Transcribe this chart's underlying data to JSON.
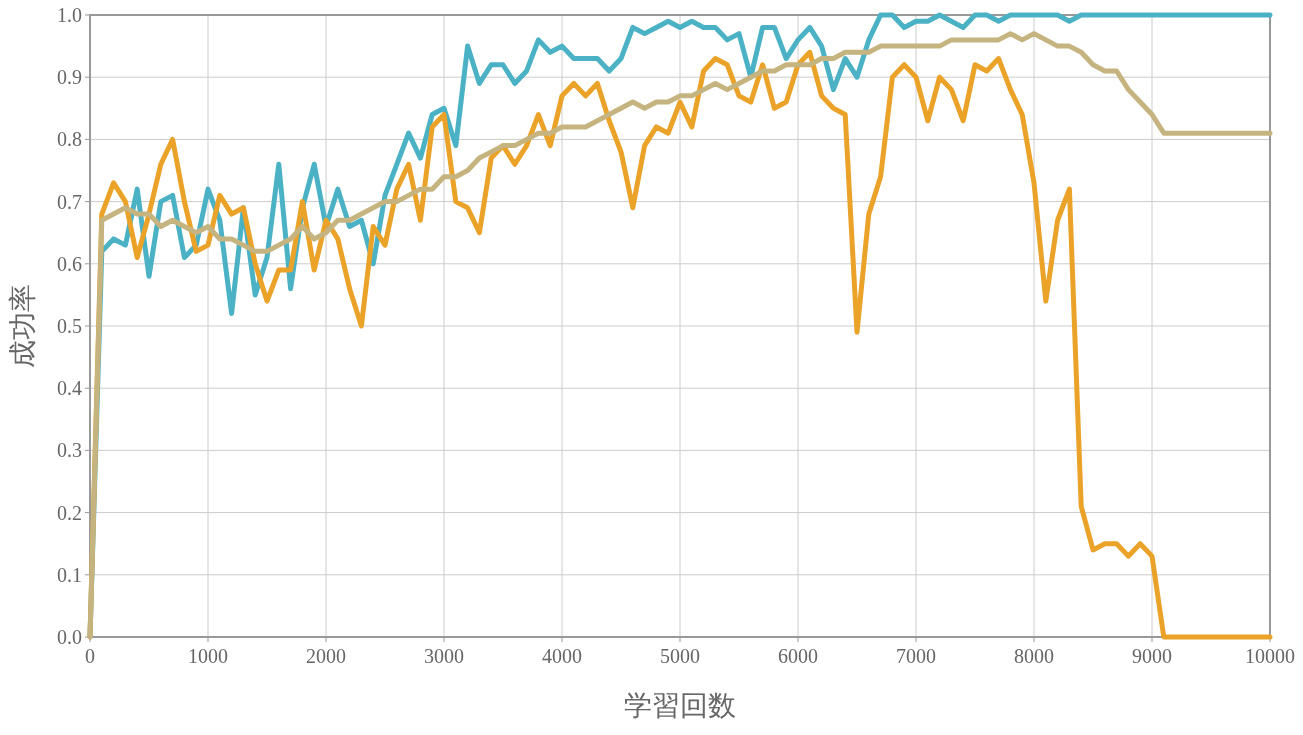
{
  "chart_data": {
    "type": "line",
    "xlabel": "学習回数",
    "ylabel": "成功率",
    "x": [
      0,
      100,
      200,
      300,
      400,
      500,
      600,
      700,
      800,
      900,
      1000,
      1100,
      1200,
      1300,
      1400,
      1500,
      1600,
      1700,
      1800,
      1900,
      2000,
      2100,
      2200,
      2300,
      2400,
      2500,
      2600,
      2700,
      2800,
      2900,
      3000,
      3100,
      3200,
      3300,
      3400,
      3500,
      3600,
      3700,
      3800,
      3900,
      4000,
      4100,
      4200,
      4300,
      4400,
      4500,
      4600,
      4700,
      4800,
      4900,
      5000,
      5100,
      5200,
      5300,
      5400,
      5500,
      5600,
      5700,
      5800,
      5900,
      6000,
      6100,
      6200,
      6300,
      6400,
      6500,
      6600,
      6700,
      6800,
      6900,
      7000,
      7100,
      7200,
      7300,
      7400,
      7500,
      7600,
      7700,
      7800,
      7900,
      8000,
      8100,
      8200,
      8300,
      8400,
      8500,
      8600,
      8700,
      8800,
      8900,
      9000,
      9100,
      9200,
      9300,
      9400,
      9500,
      9600,
      9700,
      9800,
      9900,
      10000
    ],
    "series": [
      {
        "color": "#4bb2c5",
        "values": [
          0,
          0.62,
          0.64,
          0.63,
          0.72,
          0.58,
          0.7,
          0.71,
          0.61,
          0.63,
          0.72,
          0.67,
          0.52,
          0.69,
          0.55,
          0.61,
          0.76,
          0.56,
          0.69,
          0.76,
          0.66,
          0.72,
          0.66,
          0.67,
          0.6,
          0.71,
          0.76,
          0.81,
          0.77,
          0.84,
          0.85,
          0.79,
          0.95,
          0.89,
          0.92,
          0.92,
          0.89,
          0.91,
          0.96,
          0.94,
          0.95,
          0.93,
          0.93,
          0.93,
          0.91,
          0.93,
          0.98,
          0.97,
          0.98,
          0.99,
          0.98,
          0.99,
          0.98,
          0.98,
          0.96,
          0.97,
          0.9,
          0.98,
          0.98,
          0.93,
          0.96,
          0.98,
          0.95,
          0.88,
          0.93,
          0.9,
          0.96,
          1.0,
          1.0,
          0.98,
          0.99,
          0.99,
          1.0,
          0.99,
          0.98,
          1.0,
          1.0,
          0.99,
          1.0,
          1.0,
          1.0,
          1.0,
          1.0,
          0.99,
          1.0,
          1.0,
          1.0,
          1.0,
          1.0,
          1.0,
          1.0,
          1.0,
          1.0,
          1.0,
          1.0,
          1.0,
          1.0,
          1.0,
          1.0,
          1.0,
          1.0
        ]
      },
      {
        "color": "#eaa228",
        "values": [
          0,
          0.68,
          0.73,
          0.7,
          0.61,
          0.68,
          0.76,
          0.8,
          0.7,
          0.62,
          0.63,
          0.71,
          0.68,
          0.69,
          0.6,
          0.54,
          0.59,
          0.59,
          0.7,
          0.59,
          0.67,
          0.64,
          0.56,
          0.5,
          0.66,
          0.63,
          0.72,
          0.76,
          0.67,
          0.82,
          0.84,
          0.7,
          0.69,
          0.65,
          0.77,
          0.79,
          0.76,
          0.79,
          0.84,
          0.79,
          0.87,
          0.89,
          0.87,
          0.89,
          0.83,
          0.78,
          0.69,
          0.79,
          0.82,
          0.81,
          0.86,
          0.82,
          0.91,
          0.93,
          0.92,
          0.87,
          0.86,
          0.92,
          0.85,
          0.86,
          0.92,
          0.94,
          0.87,
          0.85,
          0.84,
          0.49,
          0.68,
          0.74,
          0.9,
          0.92,
          0.9,
          0.83,
          0.9,
          0.88,
          0.83,
          0.92,
          0.91,
          0.93,
          0.88,
          0.84,
          0.73,
          0.54,
          0.67,
          0.72,
          0.21,
          0.14,
          0.15,
          0.15,
          0.13,
          0.15,
          0.13,
          0,
          0,
          0,
          0,
          0,
          0,
          0,
          0,
          0,
          0
        ]
      },
      {
        "color": "#c5b47f",
        "values": [
          0,
          0.67,
          0.68,
          0.69,
          0.68,
          0.68,
          0.66,
          0.67,
          0.66,
          0.65,
          0.66,
          0.64,
          0.64,
          0.63,
          0.62,
          0.62,
          0.63,
          0.64,
          0.66,
          0.64,
          0.65,
          0.67,
          0.67,
          0.68,
          0.69,
          0.7,
          0.7,
          0.71,
          0.72,
          0.72,
          0.74,
          0.74,
          0.75,
          0.77,
          0.78,
          0.79,
          0.79,
          0.8,
          0.81,
          0.81,
          0.82,
          0.82,
          0.82,
          0.83,
          0.84,
          0.85,
          0.86,
          0.85,
          0.86,
          0.86,
          0.87,
          0.87,
          0.88,
          0.89,
          0.88,
          0.89,
          0.9,
          0.91,
          0.91,
          0.92,
          0.92,
          0.92,
          0.93,
          0.93,
          0.94,
          0.94,
          0.94,
          0.95,
          0.95,
          0.95,
          0.95,
          0.95,
          0.95,
          0.96,
          0.96,
          0.96,
          0.96,
          0.96,
          0.97,
          0.96,
          0.97,
          0.96,
          0.95,
          0.95,
          0.94,
          0.92,
          0.91,
          0.91,
          0.88,
          0.86,
          0.84,
          0.81,
          0.81,
          0.81,
          0.81,
          0.81,
          0.81,
          0.81,
          0.81,
          0.81,
          0.81
        ]
      }
    ],
    "xlim": [
      0,
      10000
    ],
    "xticks": [
      0,
      1000,
      2000,
      3000,
      4000,
      5000,
      6000,
      7000,
      8000,
      9000,
      10000
    ],
    "ylim": [
      0,
      1
    ],
    "yticks": [
      {
        "value": 0,
        "label": "0.0"
      },
      0.1,
      0.2,
      0.3,
      0.4,
      0.5,
      0.6,
      0.7,
      0.8,
      0.9,
      {
        "value": 1,
        "label": "1.0"
      }
    ],
    "grid": true,
    "marker": "none",
    "line_style": "solid"
  }
}
